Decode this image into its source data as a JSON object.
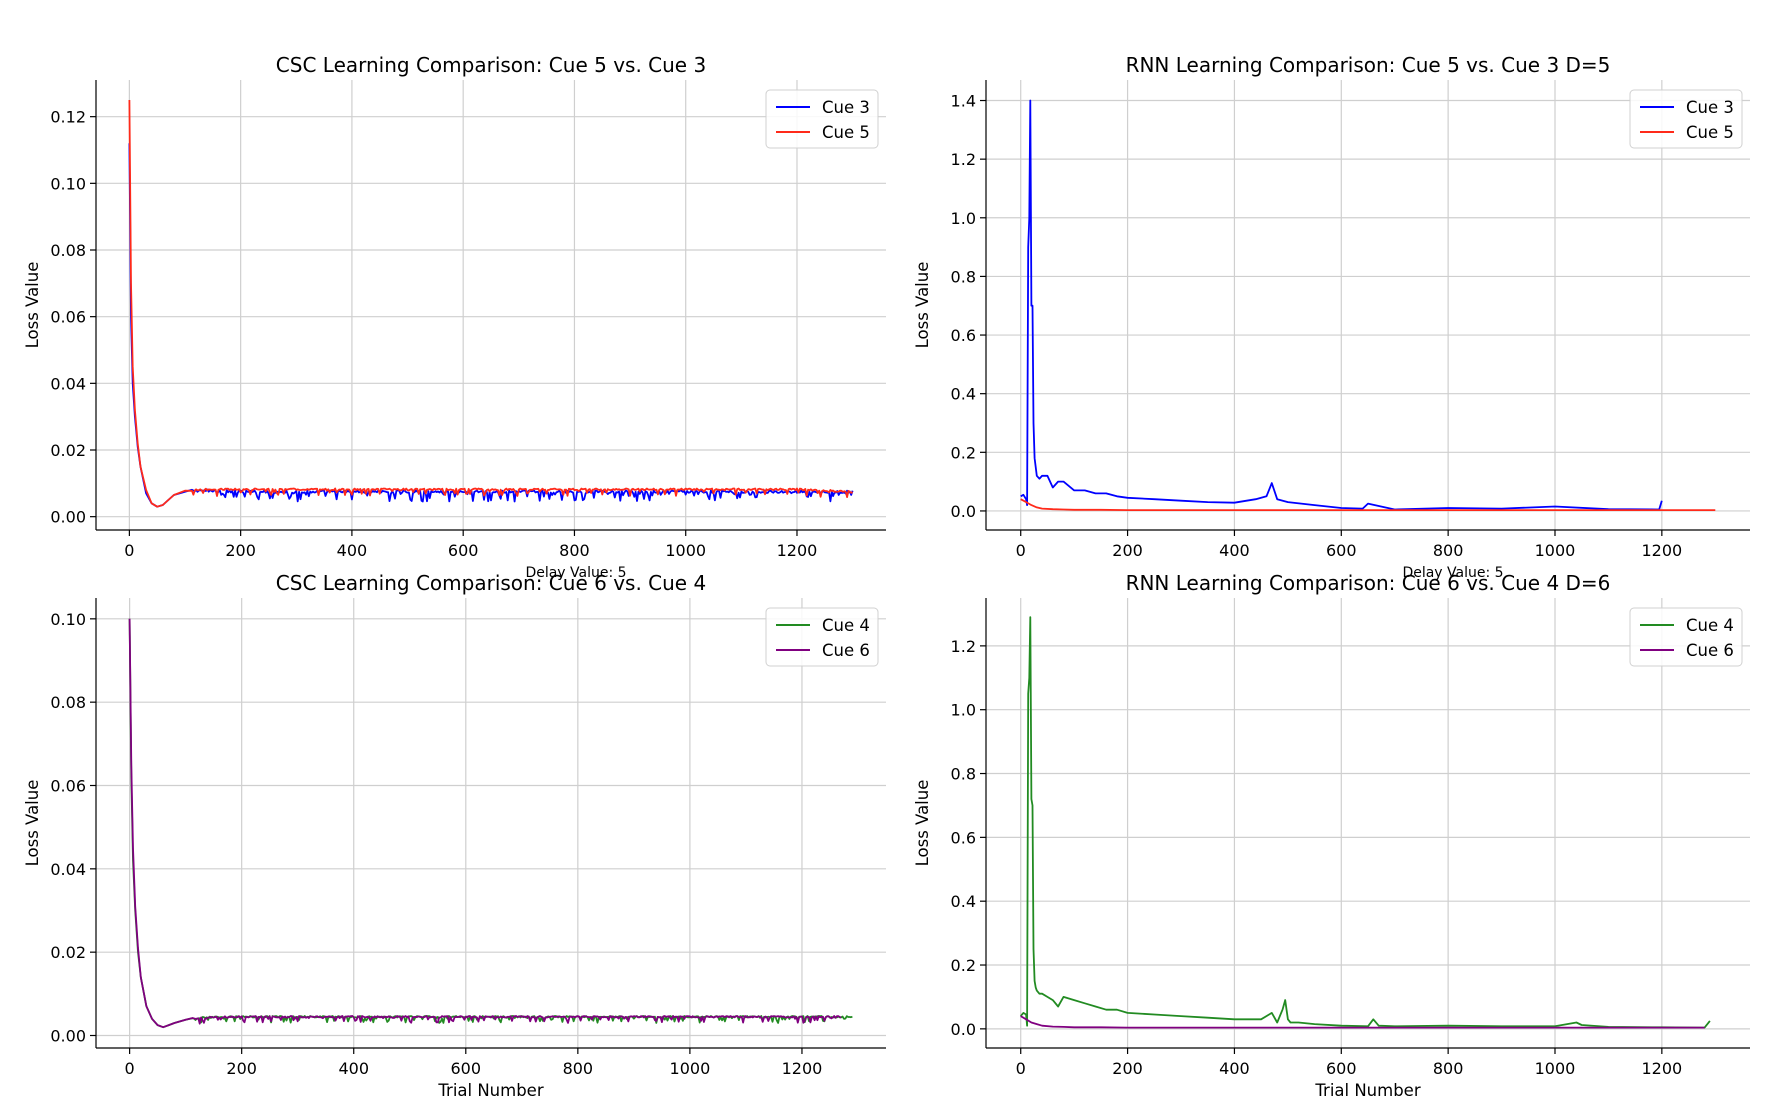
{
  "figure": {
    "panels": [
      {
        "id": "csc-5-3",
        "title": "CSC Learning Comparison: Cue 5 vs. Cue 3",
        "xlabel": "",
        "ylabel": "Loss Value",
        "note": "Delay Value: 5",
        "legend": [
          "Cue 3",
          "Cue 5"
        ]
      },
      {
        "id": "rnn-5-3",
        "title": "RNN Learning Comparison: Cue 5 vs. Cue 3 D=5",
        "xlabel": "",
        "ylabel": "Loss Value",
        "note": "Delay Value: 5",
        "legend": [
          "Cue 3",
          "Cue 5"
        ]
      },
      {
        "id": "csc-6-4",
        "title": "CSC Learning Comparison: Cue 6 vs. Cue 4",
        "xlabel": "Trial Number",
        "ylabel": "Loss Value",
        "note": "",
        "legend": [
          "Cue 4",
          "Cue 6"
        ]
      },
      {
        "id": "rnn-6-4",
        "title": "RNN Learning Comparison: Cue 6 vs. Cue 4 D=6",
        "xlabel": "Trial Number",
        "ylabel": "Loss Value",
        "note": "",
        "legend": [
          "Cue 4",
          "Cue 6"
        ]
      }
    ]
  },
  "chart_data": [
    {
      "type": "line",
      "title": "CSC Learning Comparison: Cue 5 vs. Cue 3",
      "xlabel": "",
      "ylabel": "Loss Value",
      "xlim": [
        -60,
        1360
      ],
      "ylim": [
        -0.004,
        0.131
      ],
      "xticks": [
        0,
        200,
        400,
        600,
        800,
        1000,
        1200
      ],
      "yticks": [
        0.0,
        0.02,
        0.04,
        0.06,
        0.08,
        0.1,
        0.12
      ],
      "ytick_labels": [
        "0.00",
        "0.02",
        "0.04",
        "0.06",
        "0.08",
        "0.10",
        "0.12"
      ],
      "grid": true,
      "legend_position": "upper-right",
      "annotation": "Delay Value: 5",
      "series": [
        {
          "name": "Cue 3",
          "color": "#0000ff",
          "x": [
            0,
            3,
            6,
            10,
            15,
            20,
            30,
            40,
            50,
            60,
            70,
            80,
            100,
            120,
            150,
            200,
            300,
            400,
            500,
            600,
            700,
            800,
            900,
            1000,
            1100,
            1200,
            1300
          ],
          "y": [
            0.112,
            0.06,
            0.04,
            0.03,
            0.021,
            0.015,
            0.007,
            0.004,
            0.003,
            0.0035,
            0.005,
            0.0065,
            0.0075,
            0.0078,
            0.0078,
            0.0075,
            0.0075,
            0.0075,
            0.0075,
            0.0075,
            0.0075,
            0.0075,
            0.0075,
            0.0075,
            0.0075,
            0.0075,
            0.0075
          ],
          "noise_low_amplitude": 0.003
        },
        {
          "name": "Cue 5",
          "color": "#ff2a1a",
          "x": [
            0,
            3,
            6,
            10,
            15,
            20,
            30,
            40,
            50,
            60,
            70,
            80,
            100,
            120,
            150,
            200,
            300,
            400,
            500,
            600,
            700,
            800,
            900,
            1000,
            1100,
            1200,
            1300
          ],
          "y": [
            0.125,
            0.07,
            0.045,
            0.032,
            0.022,
            0.015,
            0.008,
            0.004,
            0.003,
            0.0035,
            0.005,
            0.0065,
            0.0078,
            0.0081,
            0.0082,
            0.0082,
            0.0082,
            0.0082,
            0.0082,
            0.0082,
            0.0082,
            0.0082,
            0.0082,
            0.0082,
            0.0082,
            0.0082,
            0.0075
          ],
          "noise_low_amplitude": 0.002
        }
      ]
    },
    {
      "type": "line",
      "title": "RNN Learning Comparison: Cue 5 vs. Cue 3 D=5",
      "xlabel": "",
      "ylabel": "Loss Value",
      "xlim": [
        -65,
        1365
      ],
      "ylim": [
        -0.065,
        1.47
      ],
      "xticks": [
        0,
        200,
        400,
        600,
        800,
        1000,
        1200
      ],
      "yticks": [
        0.0,
        0.2,
        0.4,
        0.6,
        0.8,
        1.0,
        1.2,
        1.4
      ],
      "ytick_labels": [
        "0.0",
        "0.2",
        "0.4",
        "0.6",
        "0.8",
        "1.0",
        "1.2",
        "1.4"
      ],
      "grid": true,
      "legend_position": "upper-right",
      "annotation": "Delay Value: 5",
      "series": [
        {
          "name": "Cue 3",
          "color": "#0000ff",
          "x": [
            0,
            5,
            10,
            12,
            14,
            16,
            18,
            20,
            22,
            24,
            26,
            28,
            30,
            35,
            40,
            50,
            60,
            70,
            80,
            100,
            120,
            140,
            160,
            180,
            200,
            250,
            300,
            350,
            400,
            440,
            460,
            470,
            480,
            500,
            550,
            600,
            640,
            650,
            700,
            800,
            900,
            1000,
            1100,
            1195,
            1200
          ],
          "y": [
            0.05,
            0.055,
            0.04,
            0.02,
            0.9,
            1.0,
            1.4,
            0.7,
            0.7,
            0.3,
            0.18,
            0.15,
            0.12,
            0.11,
            0.12,
            0.12,
            0.08,
            0.1,
            0.1,
            0.07,
            0.07,
            0.06,
            0.06,
            0.05,
            0.045,
            0.04,
            0.035,
            0.03,
            0.028,
            0.04,
            0.05,
            0.095,
            0.04,
            0.03,
            0.02,
            0.01,
            0.008,
            0.025,
            0.005,
            0.01,
            0.008,
            0.015,
            0.006,
            0.005,
            0.035
          ],
          "noise_low_amplitude": 0.0
        },
        {
          "name": "Cue 5",
          "color": "#ff2a1a",
          "x": [
            0,
            10,
            20,
            30,
            40,
            60,
            80,
            100,
            150,
            200,
            300,
            400,
            500,
            600,
            700,
            800,
            900,
            1000,
            1100,
            1200,
            1300
          ],
          "y": [
            0.04,
            0.03,
            0.02,
            0.012,
            0.008,
            0.006,
            0.005,
            0.004,
            0.004,
            0.003,
            0.003,
            0.003,
            0.003,
            0.003,
            0.003,
            0.003,
            0.003,
            0.003,
            0.003,
            0.003,
            0.003
          ],
          "noise_low_amplitude": 0.0
        }
      ]
    },
    {
      "type": "line",
      "title": "CSC Learning Comparison: Cue 6 vs. Cue 4",
      "xlabel": "Trial Number",
      "ylabel": "Loss Value",
      "xlim": [
        -60,
        1350
      ],
      "ylim": [
        -0.003,
        0.105
      ],
      "xticks": [
        0,
        200,
        400,
        600,
        800,
        1000,
        1200
      ],
      "yticks": [
        0.0,
        0.02,
        0.04,
        0.06,
        0.08,
        0.1
      ],
      "ytick_labels": [
        "0.00",
        "0.02",
        "0.04",
        "0.06",
        "0.08",
        "0.10"
      ],
      "grid": true,
      "legend_position": "upper-right",
      "annotation": "",
      "series": [
        {
          "name": "Cue 4",
          "color": "#228b22",
          "x": [
            0,
            3,
            6,
            10,
            15,
            20,
            30,
            40,
            50,
            60,
            70,
            80,
            100,
            120,
            150,
            200,
            300,
            400,
            500,
            600,
            700,
            800,
            900,
            1000,
            1100,
            1200,
            1290
          ],
          "y": [
            0.1,
            0.062,
            0.042,
            0.03,
            0.02,
            0.014,
            0.007,
            0.004,
            0.0025,
            0.002,
            0.0025,
            0.003,
            0.0038,
            0.0042,
            0.0044,
            0.0045,
            0.0045,
            0.0045,
            0.0045,
            0.0045,
            0.0045,
            0.0045,
            0.0045,
            0.0045,
            0.0045,
            0.0045,
            0.0045
          ],
          "noise_low_amplitude": 0.0015
        },
        {
          "name": "Cue 6",
          "color": "#800080",
          "x": [
            0,
            3,
            6,
            10,
            15,
            20,
            30,
            40,
            50,
            60,
            70,
            80,
            100,
            120,
            150,
            200,
            300,
            400,
            500,
            600,
            700,
            800,
            900,
            1000,
            1100,
            1200,
            1270
          ],
          "y": [
            0.1,
            0.065,
            0.045,
            0.031,
            0.021,
            0.014,
            0.007,
            0.004,
            0.0025,
            0.002,
            0.0025,
            0.003,
            0.0038,
            0.0042,
            0.0044,
            0.0045,
            0.0045,
            0.0045,
            0.0045,
            0.0045,
            0.0045,
            0.0045,
            0.0045,
            0.0045,
            0.0045,
            0.0045,
            0.0045
          ],
          "noise_low_amplitude": 0.0015
        }
      ]
    },
    {
      "type": "line",
      "title": "RNN Learning Comparison: Cue 6 vs. Cue 4 D=6",
      "xlabel": "Trial Number",
      "ylabel": "Loss Value",
      "xlim": [
        -65,
        1365
      ],
      "ylim": [
        -0.06,
        1.35
      ],
      "xticks": [
        0,
        200,
        400,
        600,
        800,
        1000,
        1200
      ],
      "yticks": [
        0.0,
        0.2,
        0.4,
        0.6,
        0.8,
        1.0,
        1.2
      ],
      "ytick_labels": [
        "0.0",
        "0.2",
        "0.4",
        "0.6",
        "0.8",
        "1.0",
        "1.2"
      ],
      "grid": true,
      "legend_position": "upper-right",
      "annotation": "",
      "series": [
        {
          "name": "Cue 4",
          "color": "#228b22",
          "x": [
            0,
            5,
            10,
            12,
            14,
            16,
            18,
            20,
            22,
            24,
            26,
            28,
            30,
            35,
            40,
            50,
            60,
            70,
            80,
            100,
            120,
            140,
            160,
            180,
            200,
            250,
            300,
            350,
            400,
            450,
            470,
            480,
            490,
            495,
            500,
            505,
            520,
            550,
            600,
            650,
            660,
            670,
            700,
            800,
            900,
            1000,
            1040,
            1050,
            1100,
            1200,
            1280,
            1290
          ],
          "y": [
            0.04,
            0.05,
            0.045,
            0.01,
            1.05,
            1.1,
            1.29,
            0.72,
            0.7,
            0.25,
            0.15,
            0.13,
            0.12,
            0.11,
            0.11,
            0.1,
            0.09,
            0.07,
            0.1,
            0.09,
            0.08,
            0.07,
            0.06,
            0.06,
            0.05,
            0.045,
            0.04,
            0.035,
            0.03,
            0.03,
            0.05,
            0.02,
            0.06,
            0.09,
            0.03,
            0.02,
            0.02,
            0.015,
            0.01,
            0.008,
            0.03,
            0.01,
            0.008,
            0.01,
            0.008,
            0.008,
            0.02,
            0.012,
            0.006,
            0.005,
            0.004,
            0.025
          ],
          "noise_low_amplitude": 0.0
        },
        {
          "name": "Cue 6",
          "color": "#800080",
          "x": [
            0,
            10,
            20,
            30,
            40,
            60,
            80,
            100,
            150,
            200,
            300,
            400,
            500,
            600,
            700,
            800,
            900,
            1000,
            1100,
            1200,
            1280
          ],
          "y": [
            0.04,
            0.03,
            0.02,
            0.015,
            0.01,
            0.007,
            0.006,
            0.005,
            0.005,
            0.004,
            0.004,
            0.004,
            0.004,
            0.004,
            0.004,
            0.004,
            0.004,
            0.004,
            0.004,
            0.004,
            0.004
          ],
          "noise_low_amplitude": 0.0
        }
      ]
    }
  ]
}
